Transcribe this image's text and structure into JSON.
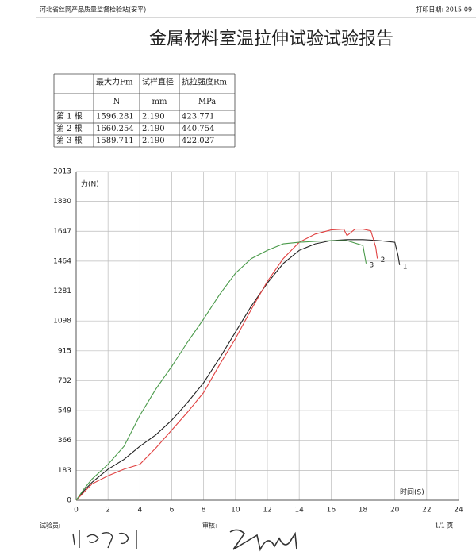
{
  "header": {
    "station": "河北省丝网产品质量监督检验站(安平)",
    "print_date": "打印日期: 2015-09-"
  },
  "title": "金属材料室温拉伸试验试验报告",
  "table": {
    "rows": [
      [
        "",
        "最大力Fm",
        "试样直径",
        "抗拉强度Rm"
      ],
      [
        "",
        "N",
        "mm",
        "MPa"
      ],
      [
        "第 1 根",
        "1596.281",
        "2.190",
        "423.771"
      ],
      [
        "第 2 根",
        "1660.254",
        "2.190",
        "440.754"
      ],
      [
        "第 3 根",
        "1589.711",
        "2.190",
        "422.027"
      ]
    ]
  },
  "chart_data": {
    "type": "line",
    "y_label": "力(N)",
    "x_label": "时间(S)",
    "xlim": [
      0,
      24
    ],
    "xticks": [
      0,
      2,
      4,
      6,
      8,
      10,
      12,
      14,
      16,
      18,
      20,
      22,
      24
    ],
    "ylim": [
      0,
      2013
    ],
    "yticks": [
      0,
      183,
      366,
      549,
      732,
      915,
      1098,
      1281,
      1464,
      1647,
      1830,
      2013
    ],
    "grid": true,
    "series": [
      {
        "name": "1",
        "color": "#222222",
        "x": [
          0,
          0.5,
          1,
          2,
          3,
          4,
          5,
          6,
          7,
          8,
          9,
          10,
          11,
          12,
          13,
          14,
          15,
          16,
          17,
          18,
          19,
          20,
          20.2,
          20.3
        ],
        "values": [
          0,
          60,
          110,
          190,
          250,
          330,
          400,
          490,
          600,
          720,
          870,
          1030,
          1190,
          1330,
          1450,
          1530,
          1570,
          1590,
          1596,
          1596,
          1590,
          1580,
          1500,
          1440
        ]
      },
      {
        "name": "2",
        "color": "#e04040",
        "x": [
          0,
          0.5,
          1,
          2,
          3,
          4,
          5,
          6,
          7,
          8,
          9,
          10,
          11,
          12,
          13,
          14,
          15,
          16,
          16.8,
          17,
          17.5,
          18,
          18.5,
          18.8,
          18.9
        ],
        "values": [
          0,
          50,
          100,
          150,
          190,
          220,
          320,
          430,
          540,
          660,
          830,
          990,
          1170,
          1340,
          1480,
          1580,
          1630,
          1655,
          1660,
          1620,
          1660,
          1660,
          1650,
          1550,
          1480
        ]
      },
      {
        "name": "3",
        "color": "#4a9a4a",
        "x": [
          0,
          0.5,
          1,
          2,
          3,
          4,
          5,
          6,
          7,
          8,
          9,
          10,
          11,
          12,
          13,
          14,
          15,
          16,
          17,
          18,
          18.2
        ],
        "values": [
          0,
          70,
          130,
          220,
          330,
          520,
          680,
          820,
          970,
          1110,
          1260,
          1390,
          1480,
          1530,
          1570,
          1580,
          1585,
          1590,
          1590,
          1560,
          1450
        ]
      }
    ]
  },
  "footer": {
    "tester": "试验员:",
    "reviewer": "审核:",
    "page": "1/1 页"
  }
}
